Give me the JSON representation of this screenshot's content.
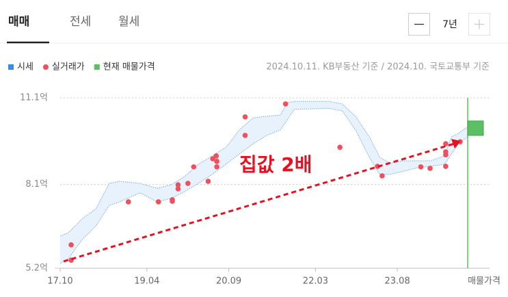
{
  "tabs": [
    "매매",
    "전세",
    "월세"
  ],
  "period": "7년",
  "source_note": "2024.10.11. KB부동산 기준 / 2024.10. 국토교통부 기준",
  "chart_data": {
    "type": "range_scatter",
    "annotation": "집값 2배",
    "xlim": [
      2017.75,
      2024.8
    ],
    "xticks": [
      {
        "value": 2017.75,
        "label": "17.10"
      },
      {
        "value": 2019.25,
        "label": "19.04"
      },
      {
        "value": 2020.667,
        "label": "20.09"
      },
      {
        "value": 2022.167,
        "label": "22.03"
      },
      {
        "value": 2023.583,
        "label": "23.08"
      }
    ],
    "ylim": [
      5.2,
      11.1
    ],
    "yticks": [
      {
        "value": 5.2,
        "label": "5.2억"
      },
      {
        "value": 8.1,
        "label": "8.1억"
      },
      {
        "value": 11.1,
        "label": "11.1억"
      }
    ],
    "series": [
      {
        "name": "시세",
        "color": "#3d8be8",
        "x": [
          2017.75,
          2017.89,
          2018.13,
          2018.37,
          2018.6,
          2018.78,
          2019.13,
          2019.43,
          2019.67,
          2019.9,
          2020.14,
          2020.38,
          2020.62,
          2020.85,
          2021.09,
          2021.32,
          2021.56,
          2021.68,
          2021.8,
          2022.39,
          2022.63,
          2022.86,
          2023.1,
          2023.28,
          2023.45,
          2023.69,
          2023.93,
          2024.16,
          2024.4,
          2024.52,
          2024.64,
          2024.8
        ],
        "upper": [
          6.31,
          6.43,
          6.91,
          7.26,
          8.14,
          8.21,
          8.14,
          7.97,
          8.09,
          8.37,
          8.8,
          9.09,
          9.39,
          9.99,
          10.41,
          10.46,
          10.51,
          10.93,
          10.98,
          10.98,
          10.89,
          10.46,
          9.75,
          9.04,
          8.85,
          8.92,
          8.92,
          8.92,
          9.09,
          9.75,
          9.87,
          10.1
        ],
        "lower": [
          5.37,
          5.53,
          6.19,
          6.67,
          7.38,
          7.5,
          7.81,
          7.5,
          7.62,
          7.85,
          8.14,
          8.45,
          8.8,
          9.16,
          9.51,
          9.8,
          9.99,
          10.34,
          10.7,
          10.74,
          10.65,
          9.99,
          9.04,
          8.45,
          8.45,
          8.56,
          8.68,
          8.73,
          8.8,
          9.16,
          9.51,
          9.75
        ]
      },
      {
        "name": "실거래가",
        "color": "#f0505e",
        "x": [
          2017.94,
          2017.94,
          2018.93,
          2019.45,
          2019.69,
          2019.69,
          2019.79,
          2019.79,
          2019.96,
          2020.06,
          2020.31,
          2020.39,
          2020.45,
          2020.46,
          2020.46,
          2020.95,
          2020.95,
          2021.65,
          2022.59,
          2023.24,
          2023.32,
          2023.99,
          2024.15,
          2024.42,
          2024.42,
          2024.42,
          2024.42,
          2024.67
        ],
        "values": [
          6.01,
          5.48,
          7.5,
          7.5,
          7.57,
          7.52,
          8.09,
          7.95,
          8.14,
          8.71,
          8.21,
          8.99,
          9.09,
          8.9,
          8.71,
          10.44,
          9.8,
          10.89,
          9.39,
          8.73,
          8.4,
          8.71,
          8.66,
          9.51,
          9.23,
          9.13,
          8.73,
          9.58
        ]
      },
      {
        "name": "현재 매물가격",
        "color": "#5cbf63",
        "low": 9.8,
        "high": 10.3,
        "label": "매물가격"
      }
    ]
  }
}
